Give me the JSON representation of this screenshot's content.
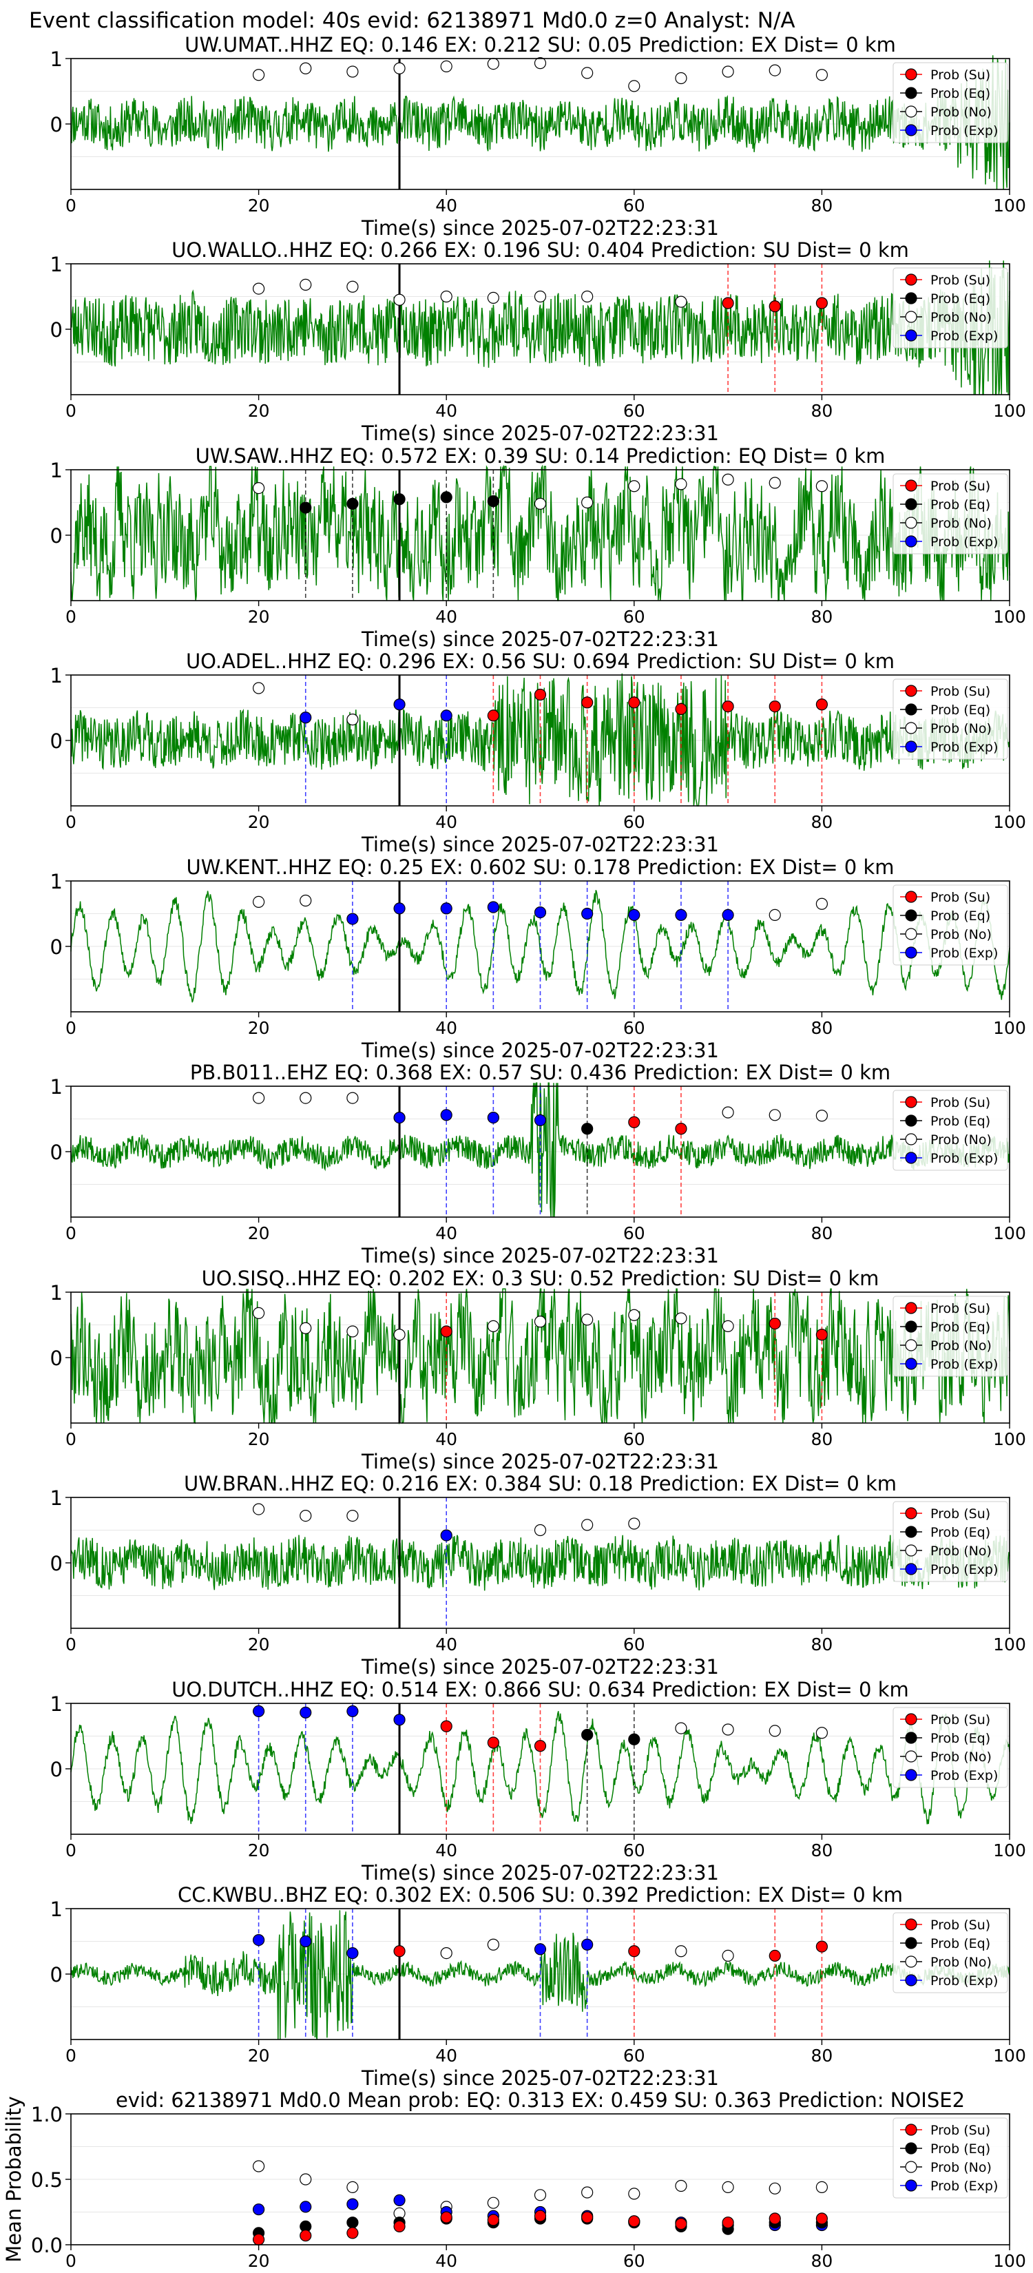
{
  "figure": {
    "suptitle": "Event classification model: 40s evid: 62138971 Md0.0 z=0 Analyst: N/A"
  },
  "legend_labels": [
    "Prob (Su)",
    "Prob (Eq)",
    "Prob (No)",
    "Prob (Exp)"
  ],
  "colors": {
    "su": "#ff0000",
    "eq": "#000000",
    "no": "#ffffff",
    "exp": "#0000ff",
    "waveform": "#008000"
  },
  "chart_data": [
    {
      "type": "line",
      "title": "UW.UMAT..HHZ   EQ: 0.146  EX: 0.212  SU: 0.05   Prediction: EX    Dist= 0 km",
      "xlabel": "Time(s) since 2025-07-02T22:23:31",
      "xlim": [
        0,
        100
      ],
      "ylim": [
        -1,
        1
      ],
      "xticks": [
        0,
        20,
        40,
        60,
        80,
        100
      ],
      "yticks": [
        0,
        1
      ],
      "pick_time": 35,
      "waveform": {
        "style": "moderate",
        "seed": 11,
        "end_burst": true
      },
      "points": [
        {
          "t": 20,
          "class": "no",
          "p": 0.75
        },
        {
          "t": 25,
          "class": "no",
          "p": 0.85
        },
        {
          "t": 30,
          "class": "no",
          "p": 0.8
        },
        {
          "t": 35,
          "class": "no",
          "p": 0.85
        },
        {
          "t": 40,
          "class": "no",
          "p": 0.88
        },
        {
          "t": 45,
          "class": "no",
          "p": 0.92
        },
        {
          "t": 50,
          "class": "no",
          "p": 0.93
        },
        {
          "t": 55,
          "class": "no",
          "p": 0.78
        },
        {
          "t": 60,
          "class": "no",
          "p": 0.58
        },
        {
          "t": 65,
          "class": "no",
          "p": 0.7
        },
        {
          "t": 70,
          "class": "no",
          "p": 0.8
        },
        {
          "t": 75,
          "class": "no",
          "p": 0.82
        },
        {
          "t": 80,
          "class": "no",
          "p": 0.75
        }
      ]
    },
    {
      "type": "line",
      "title": "UO.WALLO..HHZ   EQ: 0.266  EX: 0.196  SU: 0.404   Prediction: SU    Dist= 0 km",
      "xlabel": "Time(s) since 2025-07-02T22:23:31",
      "xlim": [
        0,
        100
      ],
      "ylim": [
        -1,
        1
      ],
      "xticks": [
        0,
        20,
        40,
        60,
        80,
        100
      ],
      "yticks": [
        0,
        1
      ],
      "pick_time": 35,
      "waveform": {
        "style": "dense",
        "seed": 23,
        "end_burst": true
      },
      "points": [
        {
          "t": 20,
          "class": "no",
          "p": 0.62
        },
        {
          "t": 25,
          "class": "no",
          "p": 0.68
        },
        {
          "t": 30,
          "class": "no",
          "p": 0.65
        },
        {
          "t": 35,
          "class": "no",
          "p": 0.45
        },
        {
          "t": 40,
          "class": "no",
          "p": 0.5
        },
        {
          "t": 45,
          "class": "no",
          "p": 0.48
        },
        {
          "t": 50,
          "class": "no",
          "p": 0.5
        },
        {
          "t": 55,
          "class": "no",
          "p": 0.5
        },
        {
          "t": 65,
          "class": "no",
          "p": 0.42
        },
        {
          "t": 70,
          "class": "su",
          "p": 0.4
        },
        {
          "t": 75,
          "class": "su",
          "p": 0.35
        },
        {
          "t": 80,
          "class": "su",
          "p": 0.4
        }
      ]
    },
    {
      "type": "line",
      "title": "UW.SAW..HHZ   EQ: 0.572  EX: 0.39  SU: 0.14   Prediction: EQ    Dist= 0 km",
      "xlabel": "Time(s) since 2025-07-02T22:23:31",
      "xlim": [
        0,
        100
      ],
      "ylim": [
        -1,
        1
      ],
      "xticks": [
        0,
        20,
        40,
        60,
        80,
        100
      ],
      "yticks": [
        0,
        1
      ],
      "pick_time": 35,
      "waveform": {
        "style": "rough",
        "seed": 37,
        "end_burst": false
      },
      "points": [
        {
          "t": 20,
          "class": "no",
          "p": 0.72
        },
        {
          "t": 25,
          "class": "eq",
          "p": 0.42
        },
        {
          "t": 30,
          "class": "eq",
          "p": 0.48
        },
        {
          "t": 35,
          "class": "eq",
          "p": 0.55
        },
        {
          "t": 40,
          "class": "eq",
          "p": 0.58
        },
        {
          "t": 45,
          "class": "eq",
          "p": 0.52
        },
        {
          "t": 50,
          "class": "no",
          "p": 0.48
        },
        {
          "t": 55,
          "class": "no",
          "p": 0.5
        },
        {
          "t": 60,
          "class": "no",
          "p": 0.75
        },
        {
          "t": 65,
          "class": "no",
          "p": 0.78
        },
        {
          "t": 70,
          "class": "no",
          "p": 0.85
        },
        {
          "t": 75,
          "class": "no",
          "p": 0.8
        },
        {
          "t": 80,
          "class": "no",
          "p": 0.75
        }
      ]
    },
    {
      "type": "line",
      "title": "UO.ADEL..HHZ   EQ: 0.296  EX: 0.56  SU: 0.694   Prediction: SU    Dist= 0 km",
      "xlabel": "Time(s) since 2025-07-02T22:23:31",
      "xlim": [
        0,
        100
      ],
      "ylim": [
        -1,
        1
      ],
      "xticks": [
        0,
        20,
        40,
        60,
        80,
        100
      ],
      "yticks": [
        0,
        1
      ],
      "pick_time": 35,
      "waveform": {
        "style": "burst_mid",
        "seed": 41,
        "end_burst": false
      },
      "points": [
        {
          "t": 20,
          "class": "no",
          "p": 0.8
        },
        {
          "t": 25,
          "class": "exp",
          "p": 0.35
        },
        {
          "t": 30,
          "class": "no",
          "p": 0.32
        },
        {
          "t": 35,
          "class": "exp",
          "p": 0.55
        },
        {
          "t": 40,
          "class": "exp",
          "p": 0.38
        },
        {
          "t": 45,
          "class": "su",
          "p": 0.38
        },
        {
          "t": 50,
          "class": "su",
          "p": 0.7
        },
        {
          "t": 55,
          "class": "su",
          "p": 0.58
        },
        {
          "t": 60,
          "class": "su",
          "p": 0.58
        },
        {
          "t": 65,
          "class": "su",
          "p": 0.48
        },
        {
          "t": 70,
          "class": "su",
          "p": 0.52
        },
        {
          "t": 75,
          "class": "su",
          "p": 0.52
        },
        {
          "t": 80,
          "class": "su",
          "p": 0.55
        }
      ]
    },
    {
      "type": "line",
      "title": "UW.KENT..HHZ   EQ: 0.25  EX: 0.602  SU: 0.178   Prediction: EX    Dist= 0 km",
      "xlabel": "Time(s) since 2025-07-02T22:23:31",
      "xlim": [
        0,
        100
      ],
      "ylim": [
        -1,
        1
      ],
      "xticks": [
        0,
        20,
        40,
        60,
        80,
        100
      ],
      "yticks": [
        0,
        1
      ],
      "pick_time": 35,
      "waveform": {
        "style": "oscillatory",
        "seed": 53,
        "end_burst": false
      },
      "points": [
        {
          "t": 20,
          "class": "no",
          "p": 0.68
        },
        {
          "t": 25,
          "class": "no",
          "p": 0.7
        },
        {
          "t": 30,
          "class": "exp",
          "p": 0.42
        },
        {
          "t": 35,
          "class": "exp",
          "p": 0.58
        },
        {
          "t": 40,
          "class": "exp",
          "p": 0.58
        },
        {
          "t": 45,
          "class": "exp",
          "p": 0.6
        },
        {
          "t": 50,
          "class": "exp",
          "p": 0.52
        },
        {
          "t": 55,
          "class": "exp",
          "p": 0.5
        },
        {
          "t": 60,
          "class": "exp",
          "p": 0.48
        },
        {
          "t": 65,
          "class": "exp",
          "p": 0.48
        },
        {
          "t": 70,
          "class": "exp",
          "p": 0.48
        },
        {
          "t": 75,
          "class": "no",
          "p": 0.48
        },
        {
          "t": 80,
          "class": "no",
          "p": 0.65
        }
      ]
    },
    {
      "type": "line",
      "title": "PB.B011..EHZ   EQ: 0.368  EX: 0.57  SU: 0.436   Prediction: EX    Dist= 0 km",
      "xlabel": "Time(s) since 2025-07-02T22:23:31",
      "xlim": [
        0,
        100
      ],
      "ylim": [
        -1,
        1
      ],
      "xticks": [
        0,
        20,
        40,
        60,
        80,
        100
      ],
      "yticks": [
        0,
        1
      ],
      "pick_time": 35,
      "waveform": {
        "style": "low_spike",
        "seed": 67,
        "end_burst": false
      },
      "points": [
        {
          "t": 20,
          "class": "no",
          "p": 0.82
        },
        {
          "t": 25,
          "class": "no",
          "p": 0.82
        },
        {
          "t": 30,
          "class": "no",
          "p": 0.82
        },
        {
          "t": 35,
          "class": "exp",
          "p": 0.52
        },
        {
          "t": 40,
          "class": "exp",
          "p": 0.56
        },
        {
          "t": 45,
          "class": "exp",
          "p": 0.52
        },
        {
          "t": 50,
          "class": "exp",
          "p": 0.48
        },
        {
          "t": 55,
          "class": "eq",
          "p": 0.35
        },
        {
          "t": 60,
          "class": "su",
          "p": 0.45
        },
        {
          "t": 65,
          "class": "su",
          "p": 0.35
        },
        {
          "t": 70,
          "class": "no",
          "p": 0.6
        },
        {
          "t": 75,
          "class": "no",
          "p": 0.56
        },
        {
          "t": 80,
          "class": "no",
          "p": 0.55
        }
      ]
    },
    {
      "type": "line",
      "title": "UO.SISQ..HHZ   EQ: 0.202  EX: 0.3  SU: 0.52   Prediction: SU    Dist= 0 km",
      "xlabel": "Time(s) since 2025-07-02T22:23:31",
      "xlim": [
        0,
        100
      ],
      "ylim": [
        -1,
        1
      ],
      "xticks": [
        0,
        20,
        40,
        60,
        80,
        100
      ],
      "yticks": [
        0,
        1
      ],
      "pick_time": 35,
      "waveform": {
        "style": "rough",
        "seed": 79,
        "end_burst": false
      },
      "points": [
        {
          "t": 20,
          "class": "no",
          "p": 0.68
        },
        {
          "t": 25,
          "class": "no",
          "p": 0.45
        },
        {
          "t": 30,
          "class": "no",
          "p": 0.4
        },
        {
          "t": 35,
          "class": "no",
          "p": 0.35
        },
        {
          "t": 40,
          "class": "su",
          "p": 0.4
        },
        {
          "t": 45,
          "class": "no",
          "p": 0.48
        },
        {
          "t": 50,
          "class": "no",
          "p": 0.55
        },
        {
          "t": 55,
          "class": "no",
          "p": 0.58
        },
        {
          "t": 60,
          "class": "no",
          "p": 0.65
        },
        {
          "t": 65,
          "class": "no",
          "p": 0.6
        },
        {
          "t": 70,
          "class": "no",
          "p": 0.48
        },
        {
          "t": 75,
          "class": "su",
          "p": 0.52
        },
        {
          "t": 80,
          "class": "su",
          "p": 0.35
        }
      ]
    },
    {
      "type": "line",
      "title": "UW.BRAN..HHZ   EQ: 0.216  EX: 0.384  SU: 0.18   Prediction: EX    Dist= 0 km",
      "xlabel": "Time(s) since 2025-07-02T22:23:31",
      "xlim": [
        0,
        100
      ],
      "ylim": [
        -1,
        1
      ],
      "xticks": [
        0,
        20,
        40,
        60,
        80,
        100
      ],
      "yticks": [
        0,
        1
      ],
      "pick_time": 35,
      "waveform": {
        "style": "moderate",
        "seed": 83,
        "end_burst": false
      },
      "points": [
        {
          "t": 20,
          "class": "no",
          "p": 0.82
        },
        {
          "t": 25,
          "class": "no",
          "p": 0.72
        },
        {
          "t": 30,
          "class": "no",
          "p": 0.72
        },
        {
          "t": 40,
          "class": "exp",
          "p": 0.42
        },
        {
          "t": 50,
          "class": "no",
          "p": 0.5
        },
        {
          "t": 55,
          "class": "no",
          "p": 0.58
        },
        {
          "t": 60,
          "class": "no",
          "p": 0.6
        }
      ]
    },
    {
      "type": "line",
      "title": "UO.DUTCH..HHZ   EQ: 0.514  EX: 0.866  SU: 0.634   Prediction: EX    Dist= 0 km",
      "xlabel": "Time(s) since 2025-07-02T22:23:31",
      "xlim": [
        0,
        100
      ],
      "ylim": [
        -1,
        1
      ],
      "xticks": [
        0,
        20,
        40,
        60,
        80,
        100
      ],
      "yticks": [
        0,
        1
      ],
      "pick_time": 35,
      "waveform": {
        "style": "oscillatory",
        "seed": 97,
        "end_burst": false
      },
      "points": [
        {
          "t": 20,
          "class": "exp",
          "p": 0.88
        },
        {
          "t": 25,
          "class": "exp",
          "p": 0.86
        },
        {
          "t": 30,
          "class": "exp",
          "p": 0.88
        },
        {
          "t": 35,
          "class": "exp",
          "p": 0.75
        },
        {
          "t": 40,
          "class": "su",
          "p": 0.65
        },
        {
          "t": 45,
          "class": "su",
          "p": 0.4
        },
        {
          "t": 50,
          "class": "su",
          "p": 0.35
        },
        {
          "t": 55,
          "class": "eq",
          "p": 0.52
        },
        {
          "t": 60,
          "class": "eq",
          "p": 0.45
        },
        {
          "t": 65,
          "class": "no",
          "p": 0.62
        },
        {
          "t": 70,
          "class": "no",
          "p": 0.6
        },
        {
          "t": 75,
          "class": "no",
          "p": 0.58
        },
        {
          "t": 80,
          "class": "no",
          "p": 0.55
        }
      ]
    },
    {
      "type": "line",
      "title": "CC.KWBU..BHZ   EQ: 0.302  EX: 0.506  SU: 0.392   Prediction: EX    Dist= 0 km",
      "xlabel": "Time(s) since 2025-07-02T22:23:31",
      "xlim": [
        0,
        100
      ],
      "ylim": [
        -1,
        1
      ],
      "xticks": [
        0,
        20,
        40,
        60,
        80,
        100
      ],
      "yticks": [
        0,
        1
      ],
      "pick_time": 35,
      "waveform": {
        "style": "burst_early",
        "seed": 101,
        "end_burst": false
      },
      "points": [
        {
          "t": 20,
          "class": "exp",
          "p": 0.52
        },
        {
          "t": 25,
          "class": "exp",
          "p": 0.5
        },
        {
          "t": 30,
          "class": "exp",
          "p": 0.32
        },
        {
          "t": 35,
          "class": "su",
          "p": 0.35
        },
        {
          "t": 40,
          "class": "no",
          "p": 0.32
        },
        {
          "t": 45,
          "class": "no",
          "p": 0.45
        },
        {
          "t": 50,
          "class": "exp",
          "p": 0.38
        },
        {
          "t": 55,
          "class": "exp",
          "p": 0.45
        },
        {
          "t": 60,
          "class": "su",
          "p": 0.35
        },
        {
          "t": 65,
          "class": "no",
          "p": 0.35
        },
        {
          "t": 70,
          "class": "no",
          "p": 0.28
        },
        {
          "t": 75,
          "class": "su",
          "p": 0.28
        },
        {
          "t": 80,
          "class": "su",
          "p": 0.42
        }
      ]
    },
    {
      "type": "scatter",
      "title": "evid: 62138971  Md0.0   Mean prob:   EQ: 0.313  EX: 0.459  SU: 0.363   Prediction: NOISE2",
      "ylabel": "Mean Probability",
      "xlim": [
        0,
        100
      ],
      "ylim": [
        0,
        1
      ],
      "xticks": [
        0,
        20,
        40,
        60,
        80,
        100
      ],
      "yticks": [
        0.0,
        0.5,
        1.0
      ],
      "ytick_labels": [
        "0.0",
        "0.5",
        "1.0"
      ],
      "x": [
        20,
        25,
        30,
        35,
        40,
        45,
        50,
        55,
        60,
        65,
        70,
        75,
        80
      ],
      "series": [
        {
          "class": "no",
          "values": [
            0.6,
            0.5,
            0.44,
            0.24,
            0.29,
            0.32,
            0.38,
            0.4,
            0.39,
            0.45,
            0.44,
            0.43,
            0.44
          ]
        },
        {
          "class": "exp",
          "values": [
            0.27,
            0.29,
            0.31,
            0.34,
            0.25,
            0.22,
            0.25,
            0.22,
            0.18,
            0.17,
            0.15,
            0.15,
            0.15
          ]
        },
        {
          "class": "eq",
          "values": [
            0.09,
            0.14,
            0.17,
            0.17,
            0.2,
            0.17,
            0.2,
            0.2,
            0.17,
            0.14,
            0.12,
            0.17,
            0.17
          ]
        },
        {
          "class": "su",
          "values": [
            0.04,
            0.07,
            0.09,
            0.14,
            0.21,
            0.19,
            0.22,
            0.21,
            0.18,
            0.16,
            0.17,
            0.2,
            0.2
          ]
        }
      ]
    }
  ]
}
